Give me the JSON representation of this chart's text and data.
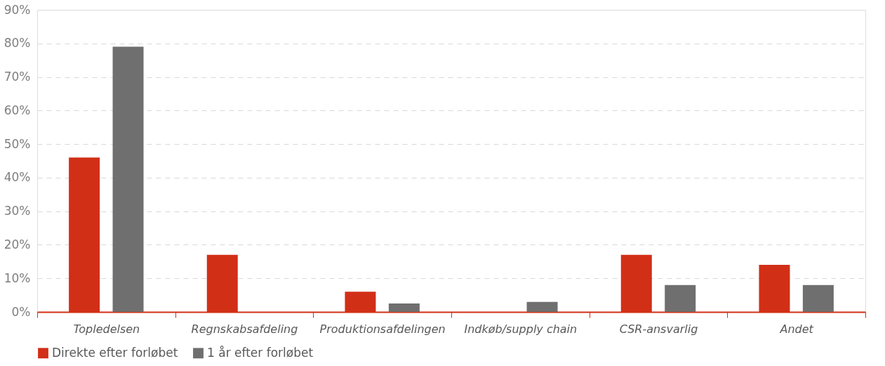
{
  "chart_data": {
    "type": "bar",
    "categories": [
      "Topledelsen",
      "Regnskabsafdeling",
      "Produktionsafdelingen",
      "Indkøb/supply chain",
      "CSR-ansvarlig",
      "Andet"
    ],
    "series": [
      {
        "name": "Direkte efter forløbet",
        "color": "#d22f17",
        "values": [
          46,
          17,
          6,
          0,
          17,
          14
        ]
      },
      {
        "name": "1 år efter forløbet",
        "color": "#6f6f6f",
        "values": [
          79,
          0,
          2.5,
          3,
          8,
          8
        ]
      }
    ],
    "ylim": [
      0,
      90
    ],
    "yticks": [
      {
        "value": 0,
        "label": "0%"
      },
      {
        "value": 10,
        "label": "10%"
      },
      {
        "value": 20,
        "label": "20%"
      },
      {
        "value": 30,
        "label": "30%"
      },
      {
        "value": 40,
        "label": "40%"
      },
      {
        "value": 50,
        "label": "50%"
      },
      {
        "value": 60,
        "label": "60%"
      },
      {
        "value": 70,
        "label": "70%"
      },
      {
        "value": 80,
        "label": "80%"
      },
      {
        "value": 90,
        "label": "90%"
      }
    ],
    "grid": "y",
    "legend": "bottom"
  }
}
